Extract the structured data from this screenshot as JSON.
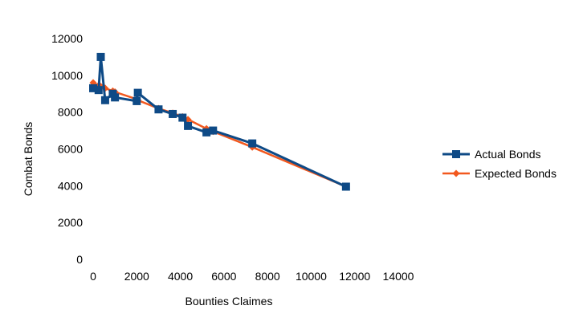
{
  "chart_data": {
    "type": "line",
    "title": "",
    "xlabel": "Bounties Claimes",
    "ylabel": "Combat Bonds",
    "xlim": [
      0,
      14000
    ],
    "ylim": [
      0,
      12000
    ],
    "x_ticks": [
      0,
      2000,
      4000,
      6000,
      8000,
      10000,
      12000,
      14000
    ],
    "y_ticks": [
      0,
      2000,
      4000,
      6000,
      8000,
      10000,
      12000
    ],
    "grid": false,
    "legend_position": "right",
    "series": [
      {
        "name": "Actual Bonds",
        "color": "#0e4a86",
        "marker": "square",
        "points": [
          [
            0,
            9300
          ],
          [
            250,
            9200
          ],
          [
            350,
            11000
          ],
          [
            550,
            8650
          ],
          [
            900,
            9000
          ],
          [
            1000,
            8800
          ],
          [
            2000,
            8600
          ],
          [
            2050,
            9050
          ],
          [
            3000,
            8150
          ],
          [
            3650,
            7900
          ],
          [
            4100,
            7700
          ],
          [
            4350,
            7250
          ],
          [
            5200,
            6900
          ],
          [
            5500,
            7000
          ],
          [
            7300,
            6300
          ],
          [
            11600,
            3950
          ]
        ]
      },
      {
        "name": "Expected Bonds",
        "color": "#f2581e",
        "marker": "diamond",
        "points": [
          [
            0,
            9600
          ],
          [
            250,
            9450
          ],
          [
            350,
            9400
          ],
          [
            550,
            9300
          ],
          [
            900,
            9150
          ],
          [
            1000,
            9100
          ],
          [
            2000,
            8700
          ],
          [
            2050,
            8650
          ],
          [
            3000,
            8200
          ],
          [
            3650,
            7950
          ],
          [
            4100,
            7750
          ],
          [
            4350,
            7600
          ],
          [
            5200,
            7100
          ],
          [
            5500,
            6950
          ],
          [
            7300,
            6100
          ],
          [
            11600,
            3950
          ]
        ]
      }
    ]
  }
}
